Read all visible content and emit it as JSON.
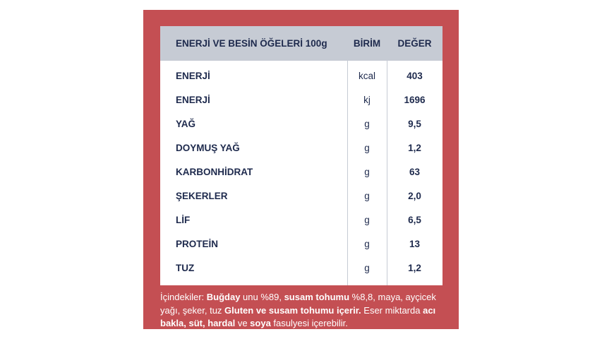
{
  "table": {
    "header": [
      "ENERJİ VE BESİN ÖĞELERİ 100g",
      "BİRİM",
      "DEĞER"
    ],
    "rows": [
      [
        "ENERJİ",
        "kcal",
        "403"
      ],
      [
        "ENERJİ",
        "kj",
        "1696"
      ],
      [
        "YAĞ",
        "g",
        "9,5"
      ],
      [
        "DOYMUŞ YAĞ",
        "g",
        "1,2"
      ],
      [
        "KARBONHİDRAT",
        "g",
        "63"
      ],
      [
        "ŞEKERLER",
        "g",
        "2,0"
      ],
      [
        "LİF",
        "g",
        "6,5"
      ],
      [
        "PROTEİN",
        "g",
        "13"
      ],
      [
        "TUZ",
        "g",
        "1,2"
      ]
    ]
  },
  "footer": {
    "segments": [
      {
        "text": "İçindekiler: ",
        "bold": false
      },
      {
        "text": "Buğday",
        "bold": true
      },
      {
        "text": " unu %89, ",
        "bold": false
      },
      {
        "text": "susam tohumu",
        "bold": true
      },
      {
        "text": " %8,8, maya, ayçicek yağı, şeker, tuz ",
        "bold": false
      },
      {
        "text": "Gluten ve susam tohumu içerir.",
        "bold": true
      },
      {
        "text": " Eser miktarda ",
        "bold": false
      },
      {
        "text": "acı bakla, süt, hardal",
        "bold": true
      },
      {
        "text": " ve ",
        "bold": false
      },
      {
        "text": "soya",
        "bold": true
      },
      {
        "text": " fasulyesi içerebilir.",
        "bold": false
      }
    ]
  }
}
